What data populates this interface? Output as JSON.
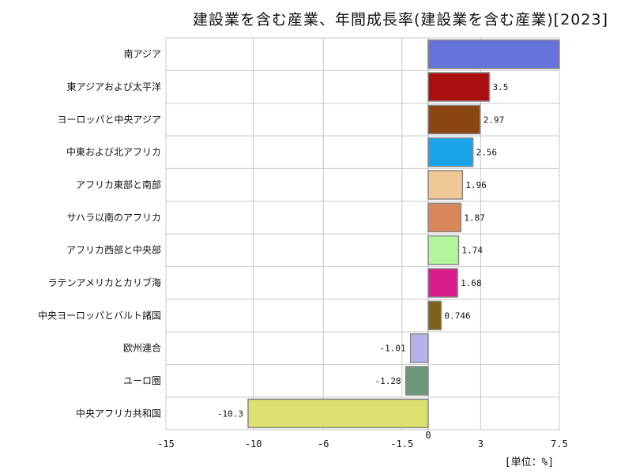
{
  "title": "建設業を含む産業、年間成長率(建設業を含む産業)[2023]",
  "unit_label": "[単位：%]",
  "chart_data": {
    "type": "bar",
    "orientation": "horizontal",
    "title": "建設業を含む産業、年間成長率(建設業を含む産業)[2023]",
    "categories": [
      "南アジア",
      "東アジアおよび太平洋",
      "ヨーロッパと中央アジア",
      "中東および北アフリカ",
      "アフリカ東部と南部",
      "サハラ以南のアフリカ",
      "アフリカ西部と中央部",
      "ラテンアメリカとカリブ海",
      "中央ヨーロッパとバルト諸国",
      "欧州連合",
      "ユーロ圏",
      "中央アフリカ共和国"
    ],
    "values": [
      7.5,
      3.5,
      2.97,
      2.56,
      1.96,
      1.87,
      1.74,
      1.68,
      0.746,
      -1.01,
      -1.28,
      -10.3
    ],
    "value_labels": [
      "",
      "3.5",
      "2.97",
      "2.56",
      "1.96",
      "1.87",
      "1.74",
      "1.68",
      "0.746",
      "-1.01",
      "-1.28",
      "-10.3"
    ],
    "colors": [
      "#6673d9",
      "#aa0f0f",
      "#8b4513",
      "#1aa3e8",
      "#f0c896",
      "#d9865a",
      "#b4f5a0",
      "#d91e8c",
      "#806015",
      "#b4b4eb",
      "#6e9678",
      "#dce06e"
    ],
    "xlim": [
      -15,
      7.5
    ],
    "xticks": [
      -15,
      -10,
      -6,
      -1.5,
      0,
      3,
      7.5
    ],
    "xtick_labels": [
      "-15",
      "-10",
      "-6",
      "-1.5",
      "0",
      "3",
      "7.5"
    ],
    "grid": true,
    "legend": "none"
  }
}
